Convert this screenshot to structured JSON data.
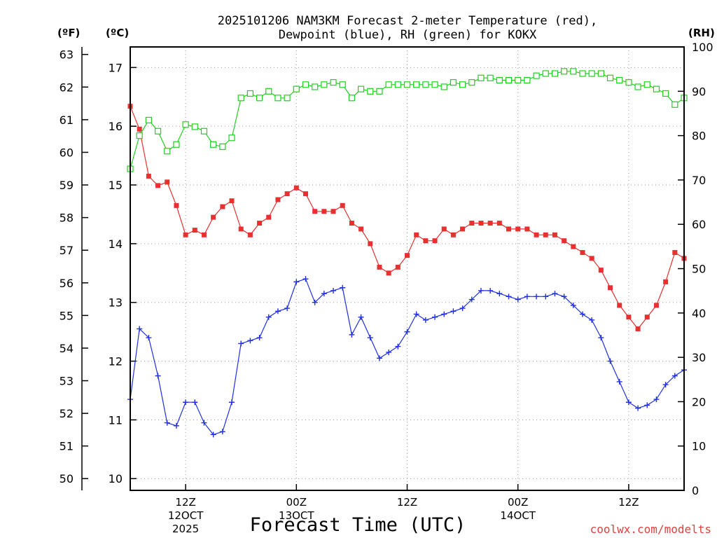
{
  "chart_data": {
    "type": "line",
    "title_lines": [
      "2025101206 NAM3KM Forecast 2-meter Temperature (red),",
      "Dewpoint (blue), RH (green) for KOKX"
    ],
    "xlabel": "Forecast Time (UTC)",
    "credit": "coolwx.com/modelts",
    "units": {
      "fahrenheit": "(ºF)",
      "celsius": "(ºC)",
      "rh": "(RH)"
    },
    "x_range_hours": [
      6,
      66
    ],
    "x_ticks": [
      {
        "hour": 12,
        "label": "12Z",
        "date": "12OCT",
        "year": "2025"
      },
      {
        "hour": 24,
        "label": "00Z",
        "date": "13OCT",
        "year": ""
      },
      {
        "hour": 36,
        "label": "12Z",
        "date": "",
        "year": ""
      },
      {
        "hour": 48,
        "label": "00Z",
        "date": "14OCT",
        "year": ""
      },
      {
        "hour": 60,
        "label": "12Z",
        "date": "",
        "year": ""
      }
    ],
    "celsius_axis": {
      "range": [
        9.8,
        17.35
      ],
      "ticks": [
        "10",
        "11",
        "12",
        "13",
        "14",
        "15",
        "16",
        "17"
      ]
    },
    "fahrenheit_axis": {
      "ticks": [
        "50",
        "51",
        "52",
        "53",
        "54",
        "55",
        "56",
        "57",
        "58",
        "59",
        "60",
        "61",
        "62",
        "63"
      ]
    },
    "rh_axis": {
      "range": [
        0,
        100
      ],
      "ticks": [
        "0",
        "10",
        "20",
        "30",
        "40",
        "50",
        "60",
        "70",
        "80",
        "90",
        "100"
      ]
    },
    "start_hour": 6,
    "step_hours": 1,
    "series": [
      {
        "name": "Temperature",
        "units": "degC",
        "color": "#e83030",
        "marker": "filled-square",
        "values": [
          16.34,
          15.95,
          15.15,
          14.99,
          15.05,
          14.65,
          14.15,
          14.23,
          14.15,
          14.45,
          14.63,
          14.73,
          14.25,
          14.15,
          14.35,
          14.45,
          14.75,
          14.85,
          14.95,
          14.85,
          14.55,
          14.55,
          14.55,
          14.65,
          14.35,
          14.25,
          14.0,
          13.6,
          13.5,
          13.6,
          13.8,
          14.15,
          14.05,
          14.05,
          14.25,
          14.15,
          14.25,
          14.35,
          14.35,
          14.35,
          14.35,
          14.25,
          14.25,
          14.25,
          14.15,
          14.15,
          14.15,
          14.05,
          13.95,
          13.85,
          13.75,
          13.55,
          13.25,
          12.95,
          12.75,
          12.55,
          12.75,
          12.95,
          13.35,
          13.85,
          13.75
        ]
      },
      {
        "name": "Dewpoint",
        "units": "degC",
        "color": "#2030e0",
        "marker": "plus",
        "values": [
          11.35,
          12.55,
          12.4,
          11.75,
          10.95,
          10.9,
          11.3,
          11.3,
          10.95,
          10.75,
          10.8,
          11.3,
          12.3,
          12.35,
          12.4,
          12.75,
          12.85,
          12.9,
          13.35,
          13.4,
          13.0,
          13.15,
          13.2,
          13.25,
          12.45,
          12.75,
          12.4,
          12.05,
          12.15,
          12.25,
          12.5,
          12.8,
          12.7,
          12.75,
          12.8,
          12.85,
          12.9,
          13.05,
          13.2,
          13.2,
          13.15,
          13.1,
          13.05,
          13.1,
          13.1,
          13.1,
          13.15,
          13.1,
          12.95,
          12.8,
          12.7,
          12.4,
          12.0,
          11.65,
          11.3,
          11.2,
          11.25,
          11.35,
          11.6,
          11.75,
          11.85
        ]
      },
      {
        "name": "Relative Humidity",
        "units": "percent",
        "color": "#20d020",
        "marker": "open-square",
        "values": [
          72.5,
          80.0,
          83.5,
          81.0,
          76.5,
          78.0,
          82.5,
          82.0,
          81.0,
          78.0,
          77.5,
          79.5,
          88.5,
          89.5,
          88.5,
          90.0,
          88.5,
          88.5,
          90.5,
          91.5,
          91.0,
          91.5,
          92.0,
          91.5,
          88.5,
          90.5,
          90.0,
          90.0,
          91.5,
          91.5,
          91.5,
          91.5,
          91.5,
          91.5,
          91.0,
          92.0,
          91.5,
          92.0,
          93.0,
          93.0,
          92.5,
          92.5,
          92.5,
          92.5,
          93.5,
          94.0,
          94.0,
          94.5,
          94.5,
          94.0,
          94.0,
          94.0,
          93.0,
          92.5,
          92.0,
          91.0,
          91.5,
          90.5,
          89.5,
          87.0,
          88.5
        ]
      }
    ]
  }
}
